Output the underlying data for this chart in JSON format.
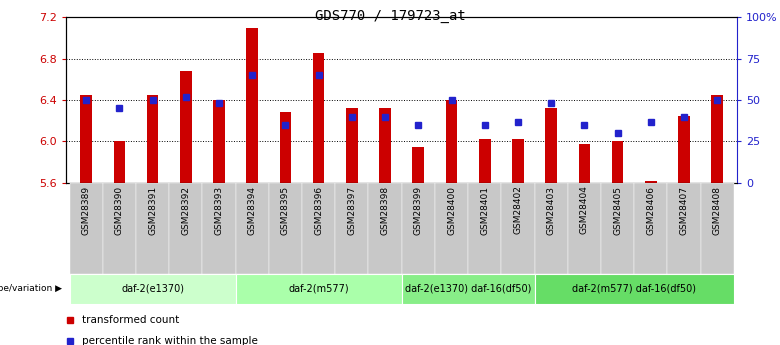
{
  "title": "GDS770 / 179723_at",
  "samples": [
    "GSM28389",
    "GSM28390",
    "GSM28391",
    "GSM28392",
    "GSM28393",
    "GSM28394",
    "GSM28395",
    "GSM28396",
    "GSM28397",
    "GSM28398",
    "GSM28399",
    "GSM28400",
    "GSM28401",
    "GSM28402",
    "GSM28403",
    "GSM28404",
    "GSM28405",
    "GSM28406",
    "GSM28407",
    "GSM28408"
  ],
  "bar_values": [
    6.45,
    6.0,
    6.45,
    6.68,
    6.4,
    7.1,
    6.28,
    6.85,
    6.32,
    6.32,
    5.95,
    6.4,
    6.02,
    6.02,
    6.32,
    5.98,
    6.0,
    5.62,
    6.25,
    6.45
  ],
  "dot_percentiles": [
    50,
    45,
    50,
    52,
    48,
    65,
    35,
    65,
    40,
    40,
    35,
    50,
    35,
    37,
    48,
    35,
    30,
    37,
    40,
    50
  ],
  "ylim_left": [
    5.6,
    7.2
  ],
  "ylim_right": [
    0,
    100
  ],
  "yticks_left": [
    5.6,
    6.0,
    6.4,
    6.8,
    7.2
  ],
  "yticks_right": [
    0,
    25,
    50,
    75,
    100
  ],
  "ytick_labels_right": [
    "0",
    "25",
    "50",
    "75",
    "100%"
  ],
  "bar_color": "#cc0000",
  "dot_color": "#2222cc",
  "bar_bottom": 5.6,
  "bar_width": 0.35,
  "groups": [
    {
      "label": "daf-2(e1370)",
      "start": 0,
      "end": 5,
      "color": "#ccffcc"
    },
    {
      "label": "daf-2(m577)",
      "start": 5,
      "end": 10,
      "color": "#aaffaa"
    },
    {
      "label": "daf-2(e1370) daf-16(df50)",
      "start": 10,
      "end": 14,
      "color": "#88ee88"
    },
    {
      "label": "daf-2(m577) daf-16(df50)",
      "start": 14,
      "end": 20,
      "color": "#66dd66"
    }
  ],
  "legend_items": [
    {
      "label": "transformed count",
      "color": "#cc0000"
    },
    {
      "label": "percentile rank within the sample",
      "color": "#2222cc"
    }
  ],
  "genotype_label": "genotype/variation",
  "title_fontsize": 10,
  "tick_fontsize": 7,
  "axis_label_color_left": "#cc0000",
  "axis_label_color_right": "#2222cc",
  "gridlines": [
    6.0,
    6.4,
    6.8
  ],
  "xlim": [
    -0.6,
    19.6
  ]
}
